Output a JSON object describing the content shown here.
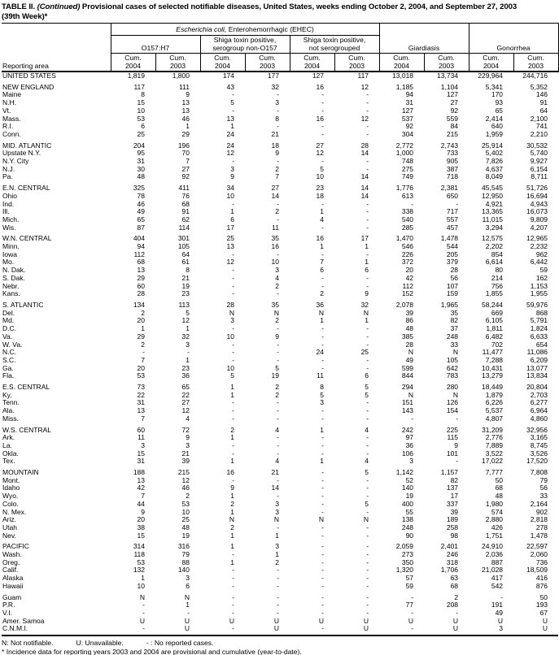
{
  "title": {
    "table_label": "TABLE II.",
    "continued": " (Continued) ",
    "rest": "Provisional cases of selected notifiable diseases, United States, weeks ending October 2, 2004, and September 27, 2003",
    "week": "(39th Week)*"
  },
  "header": {
    "reporting_area": "Reporting area",
    "ehec_italic": "Escherichia coli,",
    "ehec_rest": " Enterohemorrhagic (EHEC)",
    "groups": [
      {
        "line1": "O157:H7",
        "line2": ""
      },
      {
        "line1": "Shiga toxin positive,",
        "line2": "serogroup non-O157"
      },
      {
        "line1": "Shiga toxin positive,",
        "line2": "not serogrouped"
      },
      {
        "line1": "Giardiasis",
        "line2": ""
      },
      {
        "line1": "Gonorrhea",
        "line2": ""
      }
    ],
    "cum_label": "Cum.",
    "years": [
      "2004",
      "2003",
      "2004",
      "2003",
      "2004",
      "2003",
      "2004",
      "2003",
      "2004",
      "2003"
    ]
  },
  "rows": [
    {
      "label": "UNITED STATES",
      "type": "total",
      "gap_before": false,
      "values": [
        "1,819",
        "1,800",
        "174",
        "177",
        "127",
        "117",
        "13,018",
        "13,734",
        "229,964",
        "244,716"
      ]
    },
    {
      "label": "NEW ENGLAND",
      "type": "section",
      "gap_before": true,
      "values": [
        "117",
        "111",
        "43",
        "32",
        "16",
        "12",
        "1,185",
        "1,104",
        "5,341",
        "5,352"
      ]
    },
    {
      "label": "Maine",
      "type": "state",
      "gap_before": false,
      "values": [
        "8",
        "9",
        "-",
        "-",
        "-",
        "-",
        "94",
        "127",
        "170",
        "146"
      ]
    },
    {
      "label": "N.H.",
      "type": "state",
      "gap_before": false,
      "values": [
        "15",
        "13",
        "5",
        "3",
        "-",
        "-",
        "31",
        "27",
        "93",
        "91"
      ]
    },
    {
      "label": "Vt.",
      "type": "state",
      "gap_before": false,
      "values": [
        "10",
        "13",
        "-",
        "-",
        "-",
        "-",
        "127",
        "92",
        "65",
        "64"
      ]
    },
    {
      "label": "Mass.",
      "type": "state",
      "gap_before": false,
      "values": [
        "53",
        "46",
        "13",
        "8",
        "16",
        "12",
        "537",
        "559",
        "2,414",
        "2,100"
      ]
    },
    {
      "label": "R.I.",
      "type": "state",
      "gap_before": false,
      "values": [
        "6",
        "1",
        "1",
        "-",
        "-",
        "-",
        "92",
        "84",
        "640",
        "741"
      ]
    },
    {
      "label": "Conn.",
      "type": "state",
      "gap_before": false,
      "values": [
        "25",
        "29",
        "24",
        "21",
        "-",
        "-",
        "304",
        "215",
        "1,959",
        "2,210"
      ]
    },
    {
      "label": "MID. ATLANTIC",
      "type": "section",
      "gap_before": true,
      "values": [
        "204",
        "196",
        "24",
        "18",
        "27",
        "28",
        "2,772",
        "2,743",
        "25,914",
        "30,532"
      ]
    },
    {
      "label": "Upstate N.Y.",
      "type": "state",
      "gap_before": false,
      "values": [
        "95",
        "70",
        "12",
        "9",
        "12",
        "14",
        "1,000",
        "733",
        "5,402",
        "5,740"
      ]
    },
    {
      "label": "N.Y. City",
      "type": "state",
      "gap_before": false,
      "values": [
        "31",
        "7",
        "-",
        "-",
        "-",
        "-",
        "748",
        "905",
        "7,826",
        "9,927"
      ]
    },
    {
      "label": "N.J.",
      "type": "state",
      "gap_before": false,
      "values": [
        "30",
        "27",
        "3",
        "2",
        "5",
        "-",
        "275",
        "387",
        "4,637",
        "6,154"
      ]
    },
    {
      "label": "Pa.",
      "type": "state",
      "gap_before": false,
      "values": [
        "48",
        "92",
        "9",
        "7",
        "10",
        "14",
        "749",
        "718",
        "8,049",
        "8,711"
      ]
    },
    {
      "label": "E.N. CENTRAL",
      "type": "section",
      "gap_before": true,
      "values": [
        "325",
        "411",
        "34",
        "27",
        "23",
        "14",
        "1,776",
        "2,381",
        "45,545",
        "51,726"
      ]
    },
    {
      "label": "Ohio",
      "type": "state",
      "gap_before": false,
      "values": [
        "78",
        "76",
        "10",
        "14",
        "18",
        "14",
        "613",
        "650",
        "12,950",
        "16,694"
      ]
    },
    {
      "label": "Ind.",
      "type": "state",
      "gap_before": false,
      "values": [
        "46",
        "68",
        "-",
        "-",
        "-",
        "-",
        "-",
        "-",
        "4,921",
        "4,943"
      ]
    },
    {
      "label": "Ill.",
      "type": "state",
      "gap_before": false,
      "values": [
        "49",
        "91",
        "1",
        "2",
        "1",
        "-",
        "338",
        "717",
        "13,365",
        "16,073"
      ]
    },
    {
      "label": "Mich.",
      "type": "state",
      "gap_before": false,
      "values": [
        "65",
        "62",
        "6",
        "-",
        "4",
        "-",
        "540",
        "557",
        "11,015",
        "9,809"
      ]
    },
    {
      "label": "Wis.",
      "type": "state",
      "gap_before": false,
      "values": [
        "87",
        "114",
        "17",
        "11",
        "-",
        "-",
        "285",
        "457",
        "3,294",
        "4,207"
      ]
    },
    {
      "label": "W.N. CENTRAL",
      "type": "section",
      "gap_before": true,
      "values": [
        "404",
        "301",
        "25",
        "35",
        "16",
        "17",
        "1,470",
        "1,478",
        "12,575",
        "12,965"
      ]
    },
    {
      "label": "Minn.",
      "type": "state",
      "gap_before": false,
      "values": [
        "94",
        "105",
        "13",
        "16",
        "1",
        "1",
        "546",
        "544",
        "2,202",
        "2,232"
      ]
    },
    {
      "label": "Iowa",
      "type": "state",
      "gap_before": false,
      "values": [
        "112",
        "64",
        "-",
        "-",
        "-",
        "-",
        "226",
        "205",
        "854",
        "962"
      ]
    },
    {
      "label": "Mo.",
      "type": "state",
      "gap_before": false,
      "values": [
        "68",
        "61",
        "12",
        "10",
        "7",
        "1",
        "372",
        "379",
        "6,614",
        "6,442"
      ]
    },
    {
      "label": "N. Dak.",
      "type": "state",
      "gap_before": false,
      "values": [
        "13",
        "8",
        "-",
        "3",
        "6",
        "6",
        "20",
        "28",
        "80",
        "59"
      ]
    },
    {
      "label": "S. Dak.",
      "type": "state",
      "gap_before": false,
      "values": [
        "29",
        "21",
        "-",
        "4",
        "-",
        "-",
        "42",
        "56",
        "214",
        "162"
      ]
    },
    {
      "label": "Nebr.",
      "type": "state",
      "gap_before": false,
      "values": [
        "60",
        "19",
        "-",
        "2",
        "-",
        "-",
        "112",
        "107",
        "756",
        "1,153"
      ]
    },
    {
      "label": "Kans.",
      "type": "state",
      "gap_before": false,
      "values": [
        "28",
        "23",
        "-",
        "-",
        "2",
        "9",
        "152",
        "159",
        "1,855",
        "1,955"
      ]
    },
    {
      "label": "S. ATLANTIC",
      "type": "section",
      "gap_before": true,
      "values": [
        "134",
        "113",
        "28",
        "35",
        "36",
        "32",
        "2,078",
        "1,965",
        "58,244",
        "59,976"
      ]
    },
    {
      "label": "Del.",
      "type": "state",
      "gap_before": false,
      "values": [
        "2",
        "5",
        "N",
        "N",
        "N",
        "N",
        "39",
        "35",
        "669",
        "868"
      ]
    },
    {
      "label": "Md.",
      "type": "state",
      "gap_before": false,
      "values": [
        "20",
        "12",
        "3",
        "2",
        "1",
        "1",
        "86",
        "82",
        "6,105",
        "5,791"
      ]
    },
    {
      "label": "D.C.",
      "type": "state",
      "gap_before": false,
      "values": [
        "1",
        "1",
        "-",
        "-",
        "-",
        "-",
        "48",
        "37",
        "1,811",
        "1,824"
      ]
    },
    {
      "label": "Va.",
      "type": "state",
      "gap_before": false,
      "values": [
        "29",
        "32",
        "10",
        "9",
        "-",
        "-",
        "385",
        "248",
        "6,482",
        "6,633"
      ]
    },
    {
      "label": "W. Va.",
      "type": "state",
      "gap_before": false,
      "values": [
        "2",
        "3",
        "-",
        "-",
        "-",
        "-",
        "28",
        "33",
        "702",
        "654"
      ]
    },
    {
      "label": "N.C.",
      "type": "state",
      "gap_before": false,
      "values": [
        "-",
        "-",
        "-",
        "-",
        "24",
        "25",
        "N",
        "N",
        "11,477",
        "11,086"
      ]
    },
    {
      "label": "S.C.",
      "type": "state",
      "gap_before": false,
      "values": [
        "7",
        "1",
        "-",
        "-",
        "-",
        "-",
        "49",
        "105",
        "7,288",
        "6,209"
      ]
    },
    {
      "label": "Ga.",
      "type": "state",
      "gap_before": false,
      "values": [
        "20",
        "23",
        "10",
        "5",
        "-",
        "-",
        "599",
        "642",
        "10,431",
        "13,077"
      ]
    },
    {
      "label": "Fla.",
      "type": "state",
      "gap_before": false,
      "values": [
        "53",
        "36",
        "5",
        "19",
        "11",
        "6",
        "844",
        "783",
        "13,279",
        "13,834"
      ]
    },
    {
      "label": "E.S. CENTRAL",
      "type": "section",
      "gap_before": true,
      "values": [
        "73",
        "65",
        "1",
        "2",
        "8",
        "5",
        "294",
        "280",
        "18,449",
        "20,804"
      ]
    },
    {
      "label": "Ky.",
      "type": "state",
      "gap_before": false,
      "values": [
        "22",
        "22",
        "1",
        "2",
        "5",
        "5",
        "N",
        "N",
        "1,879",
        "2,703"
      ]
    },
    {
      "label": "Tenn.",
      "type": "state",
      "gap_before": false,
      "values": [
        "31",
        "27",
        "-",
        "-",
        "3",
        "-",
        "151",
        "126",
        "6,226",
        "6,277"
      ]
    },
    {
      "label": "Ala.",
      "type": "state",
      "gap_before": false,
      "values": [
        "13",
        "12",
        "-",
        "-",
        "-",
        "-",
        "143",
        "154",
        "5,537",
        "6,964"
      ]
    },
    {
      "label": "Miss.",
      "type": "state",
      "gap_before": false,
      "values": [
        "7",
        "4",
        "-",
        "-",
        "-",
        "-",
        "-",
        "-",
        "4,807",
        "4,860"
      ]
    },
    {
      "label": "W.S. CENTRAL",
      "type": "section",
      "gap_before": true,
      "values": [
        "60",
        "72",
        "2",
        "4",
        "1",
        "4",
        "242",
        "225",
        "31,209",
        "32,956"
      ]
    },
    {
      "label": "Ark.",
      "type": "state",
      "gap_before": false,
      "values": [
        "11",
        "9",
        "1",
        "-",
        "-",
        "-",
        "97",
        "115",
        "2,776",
        "3,165"
      ]
    },
    {
      "label": "La.",
      "type": "state",
      "gap_before": false,
      "values": [
        "3",
        "3",
        "-",
        "-",
        "-",
        "-",
        "36",
        "9",
        "7,889",
        "8,745"
      ]
    },
    {
      "label": "Okla.",
      "type": "state",
      "gap_before": false,
      "values": [
        "15",
        "21",
        "-",
        "-",
        "-",
        "-",
        "106",
        "101",
        "3,522",
        "3,526"
      ]
    },
    {
      "label": "Tex.",
      "type": "state",
      "gap_before": false,
      "values": [
        "31",
        "39",
        "1",
        "4",
        "1",
        "4",
        "3",
        "-",
        "17,022",
        "17,520"
      ]
    },
    {
      "label": "MOUNTAIN",
      "type": "section",
      "gap_before": true,
      "values": [
        "188",
        "215",
        "16",
        "21",
        "-",
        "5",
        "1,142",
        "1,157",
        "7,777",
        "7,808"
      ]
    },
    {
      "label": "Mont.",
      "type": "state",
      "gap_before": false,
      "values": [
        "13",
        "12",
        "-",
        "-",
        "-",
        "-",
        "52",
        "82",
        "50",
        "79"
      ]
    },
    {
      "label": "Idaho",
      "type": "state",
      "gap_before": false,
      "values": [
        "42",
        "46",
        "9",
        "14",
        "-",
        "-",
        "140",
        "137",
        "68",
        "56"
      ]
    },
    {
      "label": "Wyo.",
      "type": "state",
      "gap_before": false,
      "values": [
        "7",
        "2",
        "1",
        "-",
        "-",
        "-",
        "19",
        "17",
        "48",
        "33"
      ]
    },
    {
      "label": "Colo.",
      "type": "state",
      "gap_before": false,
      "values": [
        "44",
        "53",
        "2",
        "3",
        "-",
        "5",
        "400",
        "337",
        "1,980",
        "2,164"
      ]
    },
    {
      "label": "N. Mex.",
      "type": "state",
      "gap_before": false,
      "values": [
        "9",
        "10",
        "1",
        "3",
        "-",
        "-",
        "55",
        "39",
        "574",
        "902"
      ]
    },
    {
      "label": "Ariz.",
      "type": "state",
      "gap_before": false,
      "values": [
        "20",
        "25",
        "N",
        "N",
        "N",
        "N",
        "138",
        "189",
        "2,880",
        "2,818"
      ]
    },
    {
      "label": "Utah",
      "type": "state",
      "gap_before": false,
      "values": [
        "38",
        "48",
        "2",
        "-",
        "-",
        "-",
        "248",
        "258",
        "426",
        "278"
      ]
    },
    {
      "label": "Nev.",
      "type": "state",
      "gap_before": false,
      "values": [
        "15",
        "19",
        "1",
        "1",
        "-",
        "-",
        "90",
        "98",
        "1,751",
        "1,478"
      ]
    },
    {
      "label": "PACIFIC",
      "type": "section",
      "gap_before": true,
      "values": [
        "314",
        "316",
        "1",
        "3",
        "-",
        "-",
        "2,059",
        "2,401",
        "24,910",
        "22,597"
      ]
    },
    {
      "label": "Wash.",
      "type": "state",
      "gap_before": false,
      "values": [
        "118",
        "79",
        "-",
        "1",
        "-",
        "-",
        "273",
        "246",
        "2,036",
        "2,060"
      ]
    },
    {
      "label": "Oreg.",
      "type": "state",
      "gap_before": false,
      "values": [
        "53",
        "88",
        "1",
        "2",
        "-",
        "-",
        "350",
        "318",
        "887",
        "736"
      ]
    },
    {
      "label": "Calif.",
      "type": "state",
      "gap_before": false,
      "values": [
        "132",
        "140",
        "-",
        "-",
        "-",
        "-",
        "1,320",
        "1,706",
        "21,028",
        "18,509"
      ]
    },
    {
      "label": "Alaska",
      "type": "state",
      "gap_before": false,
      "values": [
        "1",
        "3",
        "-",
        "-",
        "-",
        "-",
        "57",
        "63",
        "417",
        "416"
      ]
    },
    {
      "label": "Hawaii",
      "type": "state",
      "gap_before": false,
      "values": [
        "10",
        "6",
        "-",
        "-",
        "-",
        "-",
        "59",
        "68",
        "542",
        "876"
      ]
    },
    {
      "label": "Guam",
      "type": "territory",
      "gap_before": true,
      "values": [
        "N",
        "N",
        "-",
        "-",
        "-",
        "-",
        "-",
        "2",
        "-",
        "50"
      ]
    },
    {
      "label": "P.R.",
      "type": "territory",
      "gap_before": false,
      "values": [
        "-",
        "1",
        "-",
        "-",
        "-",
        "-",
        "77",
        "208",
        "191",
        "193"
      ]
    },
    {
      "label": "V.I.",
      "type": "territory",
      "gap_before": false,
      "values": [
        "-",
        "-",
        "-",
        "-",
        "-",
        "-",
        "-",
        "-",
        "49",
        "67"
      ]
    },
    {
      "label": "Amer. Samoa",
      "type": "territory",
      "gap_before": false,
      "values": [
        "U",
        "U",
        "U",
        "U",
        "U",
        "U",
        "U",
        "U",
        "U",
        "U"
      ]
    },
    {
      "label": "C.N.M.I.",
      "type": "territory",
      "gap_before": false,
      "values": [
        "-",
        "U",
        "-",
        "U",
        "-",
        "U",
        "-",
        "U",
        "3",
        "U"
      ]
    }
  ],
  "footnotes": {
    "legend": [
      "N: Not notifiable.",
      "U: Unavailable.",
      "- : No reported cases."
    ],
    "note": "* Incidence data for reporting years 2003 and 2004 are provisional and cumulative (year-to-date)."
  }
}
